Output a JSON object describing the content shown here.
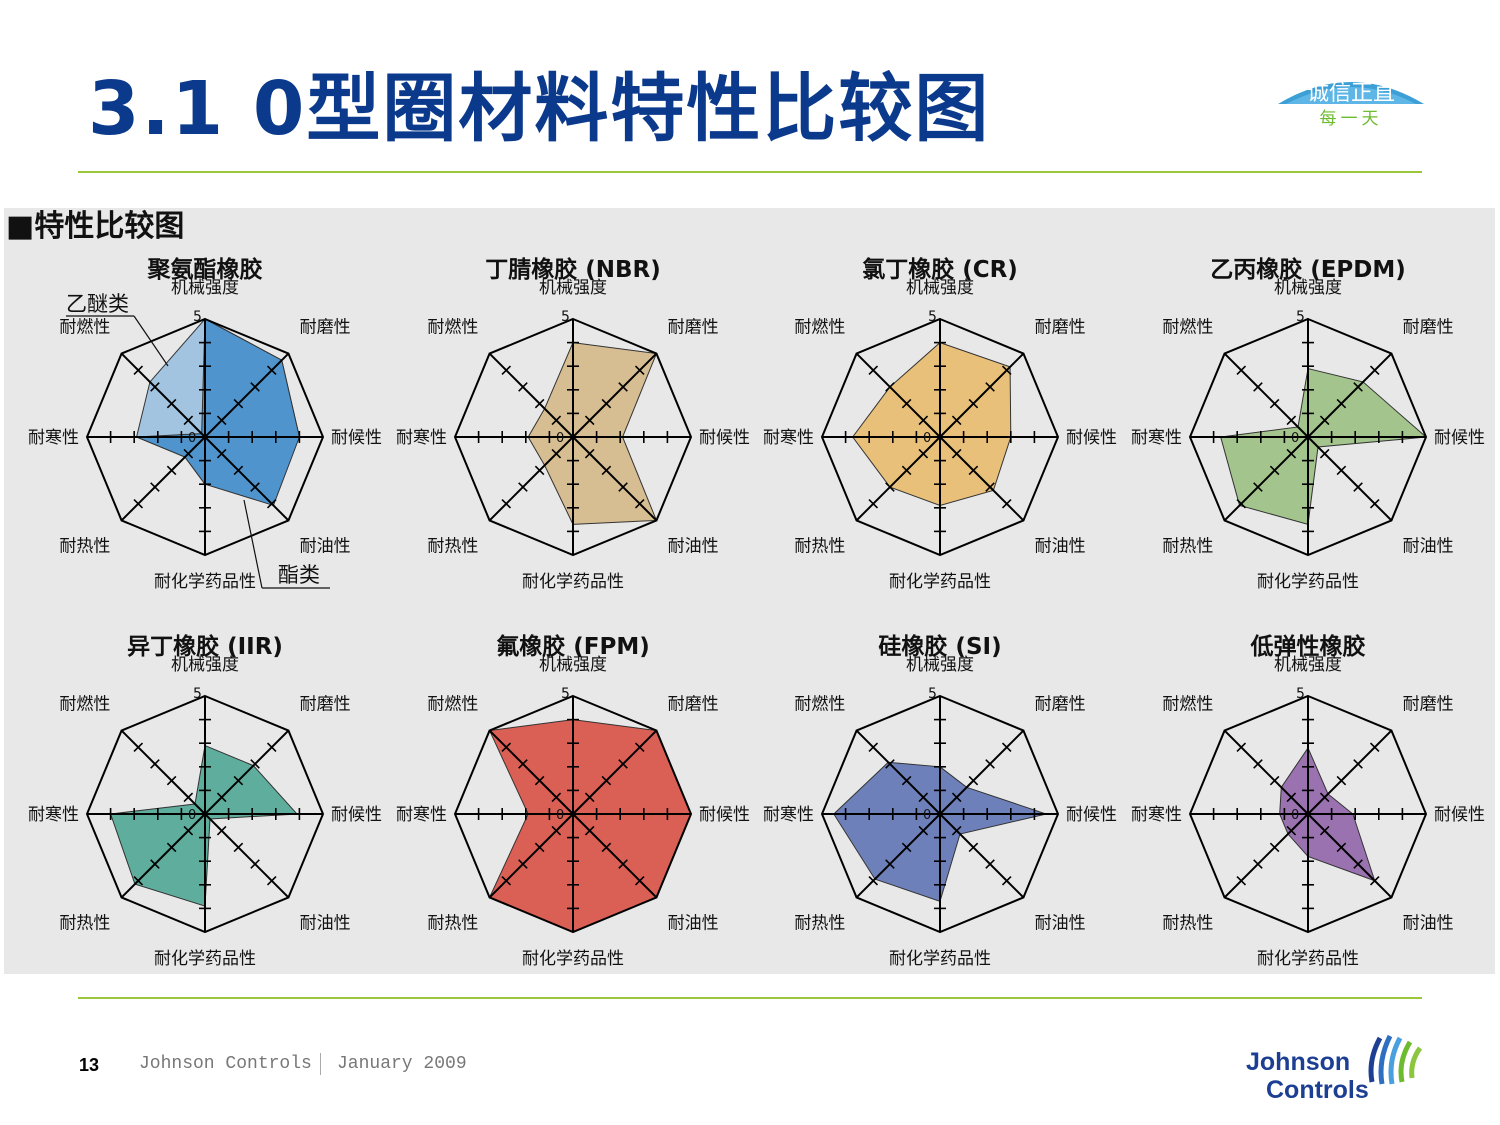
{
  "title": "3.1 0型圈材料特性比较图",
  "brand": {
    "line1": "诚信正直",
    "line2": "每一天"
  },
  "panel_heading": "■特性比较图",
  "annotations": {
    "ether": "乙醚类",
    "ester": "酯类"
  },
  "axes": [
    "机械强度",
    "耐磨性",
    "耐候性",
    "耐油性",
    "耐化学药品性",
    "耐热性",
    "耐寒性",
    "耐燃性"
  ],
  "scale": {
    "min": 0,
    "max": 5,
    "min_label": "0",
    "max_label": "5"
  },
  "footer": {
    "page": "13",
    "company": "Johnson Controls",
    "date": "January 2009"
  },
  "logo": {
    "line1": "Johnson",
    "line2": "Controls"
  },
  "colors": {
    "title": "#0b3a8c",
    "rule": "#9cc63b",
    "panel_bg": "#e8e8e8"
  },
  "chart_data": [
    {
      "type": "radar",
      "title": "聚氨酯橡胶",
      "color": "#4f94cd",
      "series": [
        {
          "name": "乙醚类",
          "values": [
            5,
            4.6,
            4,
            3.9,
            2.0,
            1.2,
            2.9,
            3.3
          ],
          "color": "#a3c4e0"
        },
        {
          "name": "酯类",
          "values": [
            5,
            4.6,
            4.0,
            4.1,
            2.0,
            1.2,
            2.9,
            0.2
          ],
          "color": "#4f94cd"
        }
      ]
    },
    {
      "type": "radar",
      "title": "丁腈橡胶 (NBR)",
      "color": "#d6bd92",
      "series": [
        {
          "values": [
            4,
            5,
            2.1,
            5,
            3.7,
            1.7,
            1.9,
            1.7
          ]
        }
      ]
    },
    {
      "type": "radar",
      "title": "氯丁橡胶 (CR)",
      "color": "#e8c07a",
      "series": [
        {
          "values": [
            4,
            4.2,
            3.0,
            3.2,
            2.9,
            3.0,
            3.7,
            3.0
          ]
        }
      ]
    },
    {
      "type": "radar",
      "title": "乙丙橡胶 (EPDM)",
      "color": "#a3c48c",
      "series": [
        {
          "values": [
            2.9,
            3.3,
            5,
            0.6,
            3.7,
            4.1,
            3.7,
            0.6
          ]
        }
      ]
    },
    {
      "type": "radar",
      "title": "异丁橡胶 (IIR)",
      "color": "#5fad9c",
      "series": [
        {
          "values": [
            2.9,
            2.9,
            3.9,
            0.3,
            3.9,
            4.2,
            4.0,
            0.6
          ]
        }
      ]
    },
    {
      "type": "radar",
      "title": "氟橡胶 (FPM)",
      "color": "#da5f55",
      "series": [
        {
          "values": [
            4,
            5,
            5,
            5,
            5,
            5,
            1.9,
            5
          ]
        }
      ]
    },
    {
      "type": "radar",
      "title": "硅橡胶 (SI)",
      "color": "#6d80ba",
      "series": [
        {
          "values": [
            2.0,
            1.6,
            4.5,
            1.2,
            3.7,
            3.9,
            4.5,
            3.1
          ]
        }
      ]
    },
    {
      "type": "radar",
      "title": "低弹性橡胶",
      "color": "#9a72b0",
      "series": [
        {
          "values": [
            2.8,
            1.2,
            1.9,
            4.0,
            1.8,
            1.2,
            1.2,
            1.6
          ]
        }
      ]
    }
  ]
}
